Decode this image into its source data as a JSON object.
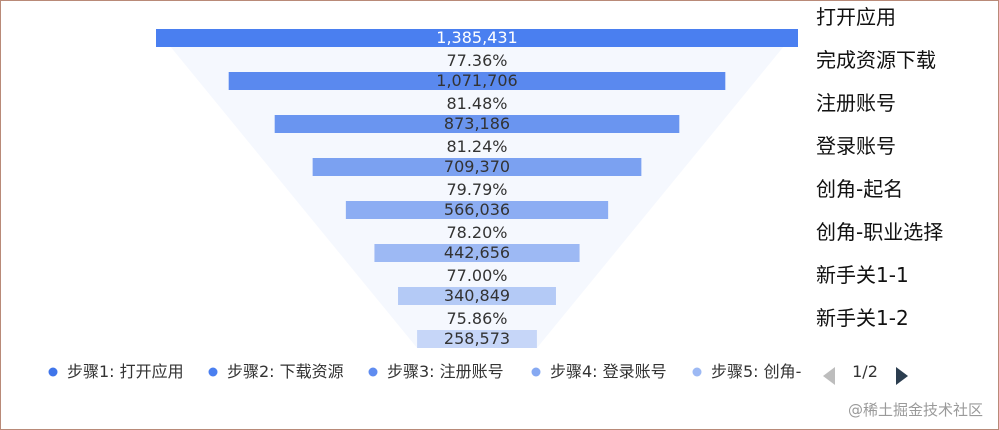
{
  "chart_data": {
    "type": "funnel",
    "stages": [
      {
        "label": "打开应用",
        "value": 1385431,
        "value_text": "1,385,431",
        "color": "#4a7ff0"
      },
      {
        "label": "完成资源下载",
        "value": 1071706,
        "value_text": "1,071,706",
        "color": "#5a89ef"
      },
      {
        "label": "注册账号",
        "value": 873186,
        "value_text": "873,186",
        "color": "#6a95f0"
      },
      {
        "label": "登录账号",
        "value": 709370,
        "value_text": "709,370",
        "color": "#7ba1f1"
      },
      {
        "label": "创角-起名",
        "value": 566036,
        "value_text": "566,036",
        "color": "#8cadf3"
      },
      {
        "label": "创角-职业选择",
        "value": 442656,
        "value_text": "442,656",
        "color": "#9db9f4"
      },
      {
        "label": "新手关1-1",
        "value": 340849,
        "value_text": "340,849",
        "color": "#b4caf6"
      },
      {
        "label": "新手关1-2",
        "value": 258573,
        "value_text": "258,573",
        "color": "#c6d6f8"
      }
    ],
    "conversion_rates": [
      "77.36%",
      "81.48%",
      "81.24%",
      "79.79%",
      "78.20%",
      "77.00%",
      "75.86%"
    ],
    "legend": {
      "items": [
        {
          "label": "步骤1: 打开应用",
          "color": "#3f75ea"
        },
        {
          "label": "步骤2: 下载资源",
          "color": "#4a7ff0"
        },
        {
          "label": "步骤3: 注册账号",
          "color": "#5f8cf0"
        },
        {
          "label": "步骤4: 登录账号",
          "color": "#86a9f2"
        },
        {
          "label": "步骤5: 创角-",
          "color": "#9db9f4"
        }
      ],
      "page": "1/2"
    }
  },
  "site_watermark": "@稀土掘金技术社区"
}
